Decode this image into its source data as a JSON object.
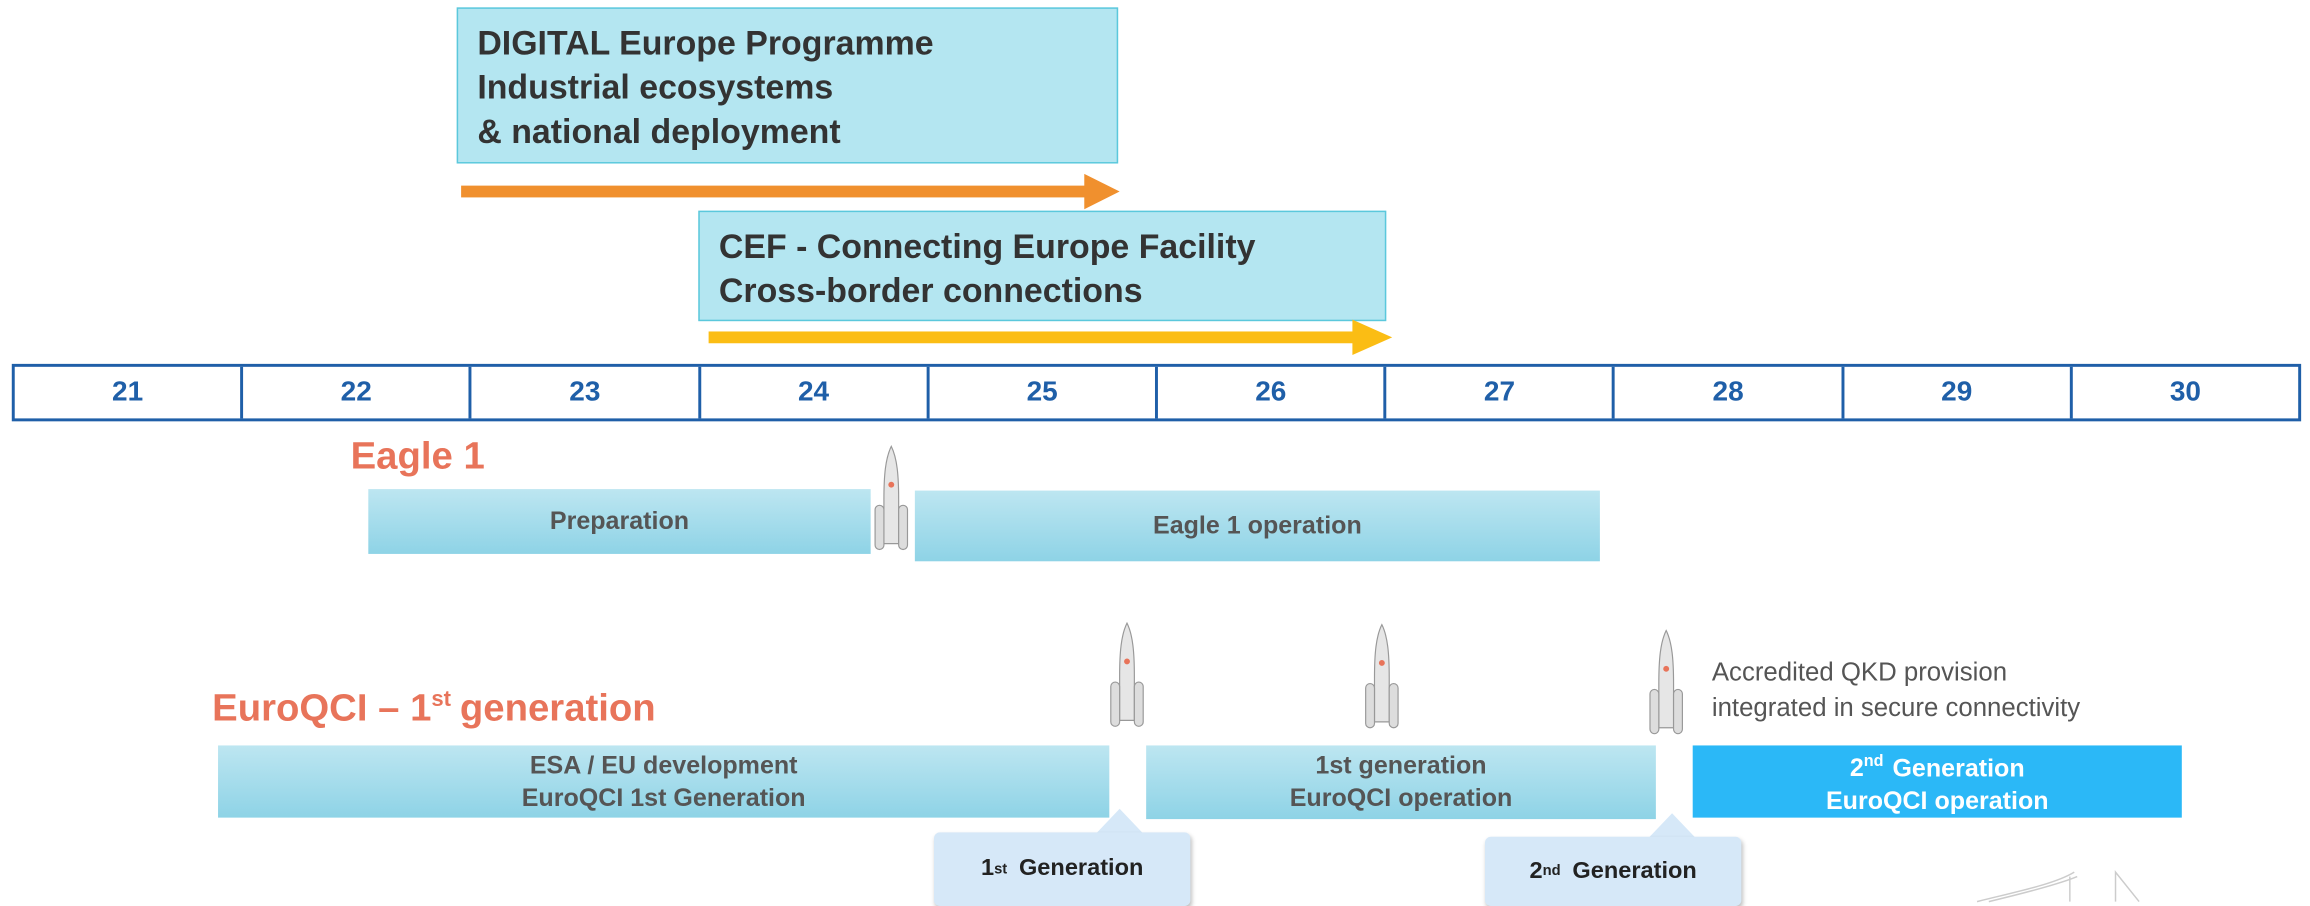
{
  "programmes": [
    {
      "lines": [
        "DIGITAL Europe Programme",
        "Industrial ecosystems",
        "& national deployment"
      ]
    },
    {
      "lines": [
        "CEF - Connecting Europe Facility",
        "Cross-border connections"
      ]
    }
  ],
  "timeline": {
    "years": [
      "21",
      "22",
      "23",
      "24",
      "25",
      "26",
      "27",
      "28",
      "29",
      "30"
    ]
  },
  "eagle1": {
    "title": "Eagle 1",
    "phases": [
      {
        "lines": [
          "Preparation"
        ]
      },
      {
        "lines": [
          "Eagle 1 operation"
        ]
      }
    ]
  },
  "euroqci": {
    "title": {
      "text": "EuroQCI – 1",
      "sup": "st",
      "rest": "generation"
    },
    "phases": [
      {
        "lines": [
          "ESA / EU development",
          "EuroQCI 1st Generation"
        ]
      },
      {
        "lines": [
          "1st generation",
          "EuroQCI operation"
        ]
      },
      {
        "line1": {
          "number": "2",
          "sup": "nd",
          "text": "Generation"
        },
        "line2": "EuroQCI operation"
      }
    ],
    "annotation": [
      "Accredited QKD provision",
      "integrated in secure connectivity"
    ],
    "milestones": [
      {
        "number": "1",
        "sup": "st",
        "text": "Generation"
      },
      {
        "number": "2",
        "sup": "nd",
        "text": "Generation"
      }
    ]
  }
}
